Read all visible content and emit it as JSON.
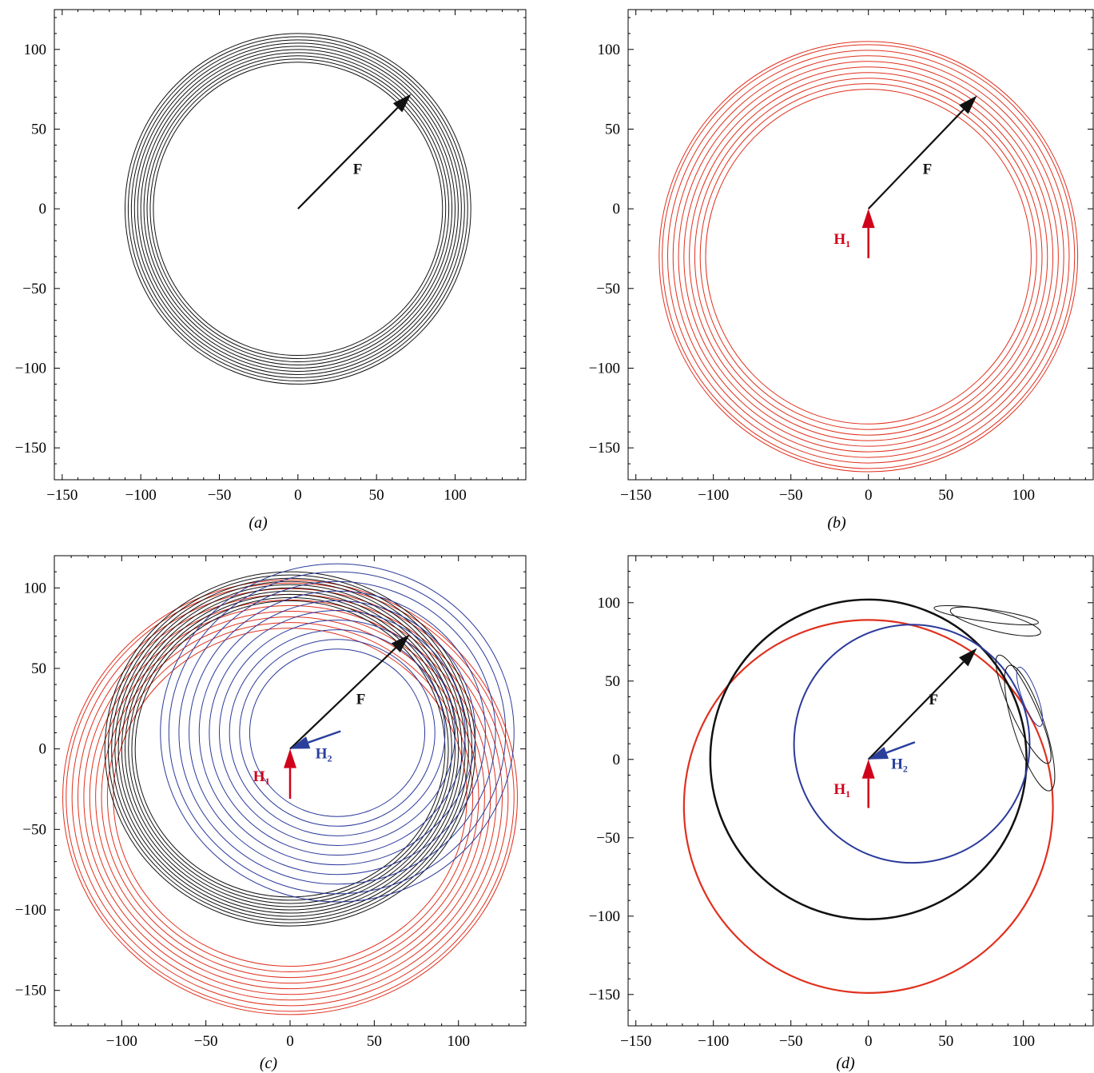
{
  "colors": {
    "black": "#111111",
    "red": "#e0301e",
    "red_arrow": "#d0021b",
    "blue": "#2b3a9a",
    "blue_arrow": "#2a3f9c"
  },
  "chart_data": [
    {
      "type": "line",
      "panel": "a",
      "caption": "(a)",
      "xlim": [
        -155,
        145
      ],
      "ylim": [
        -170,
        125
      ],
      "xticks": [
        -150,
        -100,
        -50,
        0,
        50,
        100
      ],
      "yticks": [
        -150,
        -100,
        -50,
        0,
        50,
        100
      ],
      "xtick_labels": [
        "−150",
        "−100",
        "−50",
        "0",
        "50",
        "100"
      ],
      "ytick_labels": [
        "−150",
        "−100",
        "−50",
        "0",
        "50",
        "100"
      ],
      "circle_families": [
        {
          "color_key": "black",
          "cx": 0,
          "cy": 0,
          "radii": [
            92,
            94,
            96,
            98,
            100,
            102,
            104,
            106,
            108,
            110
          ],
          "stroke": 1
        }
      ],
      "vectors": [
        {
          "label": "F",
          "sub": "",
          "color_key": "black",
          "from": [
            0,
            0
          ],
          "to": [
            72,
            72
          ],
          "label_at": [
            38,
            22
          ],
          "lw": 2.2
        }
      ]
    },
    {
      "type": "line",
      "panel": "b",
      "caption": "(b)",
      "xlim": [
        -155,
        145
      ],
      "ylim": [
        -170,
        125
      ],
      "xticks": [
        -150,
        -100,
        -50,
        0,
        50,
        100
      ],
      "yticks": [
        -150,
        -100,
        -50,
        0,
        50,
        100
      ],
      "xtick_labels": [
        "−150",
        "−100",
        "−50",
        "0",
        "50",
        "100"
      ],
      "ytick_labels": [
        "−150",
        "−100",
        "−50",
        "0",
        "50",
        "100"
      ],
      "circle_families": [
        {
          "color_key": "red",
          "cx": 0,
          "cy": -30,
          "radii": [
            105,
            108.5,
            112,
            115.5,
            119,
            122.5,
            126,
            129.5,
            133,
            135
          ],
          "stroke": 1
        }
      ],
      "vectors": [
        {
          "label": "F",
          "sub": "",
          "color_key": "black",
          "from": [
            0,
            0
          ],
          "to": [
            70,
            71
          ],
          "label_at": [
            38,
            22
          ],
          "lw": 2.2
        },
        {
          "label": "H",
          "sub": "1",
          "color_key": "red_arrow",
          "from": [
            0,
            -31
          ],
          "to": [
            0,
            0
          ],
          "label_at": [
            -17,
            -22
          ],
          "lw": 2.5
        }
      ]
    },
    {
      "type": "line",
      "panel": "c",
      "caption": "(c)",
      "xlim": [
        -140,
        140
      ],
      "ylim": [
        -172,
        120
      ],
      "xticks": [
        -100,
        -50,
        0,
        50,
        100
      ],
      "yticks": [
        -150,
        -100,
        -50,
        0,
        50,
        100
      ],
      "xtick_labels": [
        "−100",
        "−50",
        "0",
        "50",
        "100"
      ],
      "ytick_labels": [
        "−150",
        "−100",
        "−50",
        "0",
        "50",
        "100"
      ],
      "circle_families": [
        {
          "color_key": "red",
          "cx": 0,
          "cy": -30,
          "radii": [
            105,
            108.5,
            112,
            115.5,
            119,
            122.5,
            126,
            129.5,
            133,
            135
          ],
          "stroke": 1
        },
        {
          "color_key": "black",
          "cx": 0,
          "cy": 0,
          "radii": [
            92,
            94,
            96,
            98,
            100,
            102,
            104,
            106,
            108,
            110
          ],
          "stroke": 1
        },
        {
          "color_key": "blue",
          "cx": 28,
          "cy": 10,
          "radii": [
            52,
            58,
            64,
            70,
            76,
            82,
            88,
            94,
            100,
            105
          ],
          "stroke": 1
        }
      ],
      "vectors": [
        {
          "label": "F",
          "sub": "",
          "color_key": "black",
          "from": [
            0,
            0
          ],
          "to": [
            71,
            71
          ],
          "label_at": [
            42,
            28
          ],
          "lw": 2.2
        },
        {
          "label": "H",
          "sub": "1",
          "color_key": "red_arrow",
          "from": [
            0,
            -31
          ],
          "to": [
            0,
            0
          ],
          "label_at": [
            -17,
            -20
          ],
          "lw": 2.5
        },
        {
          "label": "H",
          "sub": "2",
          "color_key": "blue_arrow",
          "from": [
            30,
            11
          ],
          "to": [
            0,
            0
          ],
          "label_at": [
            20,
            -6
          ],
          "lw": 2.5
        }
      ]
    },
    {
      "type": "line",
      "panel": "d",
      "caption": "(d)",
      "xlim": [
        -155,
        145
      ],
      "ylim": [
        -170,
        130
      ],
      "xticks": [
        -150,
        -100,
        -50,
        0,
        50,
        100
      ],
      "yticks": [
        -150,
        -100,
        -50,
        0,
        50,
        100
      ],
      "xtick_labels": [
        "−150",
        "−100",
        "−50",
        "0",
        "50",
        "100"
      ],
      "ytick_labels": [
        "−150",
        "−100",
        "−50",
        "0",
        "50",
        "100"
      ],
      "circle_families": [
        {
          "color_key": "red",
          "cx": 0,
          "cy": -30,
          "radii": [
            119
          ],
          "stroke": 2.2
        },
        {
          "color_key": "black",
          "cx": 0,
          "cy": 0,
          "radii": [
            102
          ],
          "stroke": 2.5
        },
        {
          "color_key": "blue",
          "cx": 28,
          "cy": 10,
          "radii": [
            76
          ],
          "stroke": 2
        }
      ],
      "loops": [
        {
          "color_key": "black",
          "cx": 104,
          "cy": 20,
          "rx": 10,
          "ry": 42,
          "rot": -18
        },
        {
          "color_key": "black",
          "cx": 100,
          "cy": 32,
          "rx": 8,
          "ry": 38,
          "rot": -25
        },
        {
          "color_key": "black",
          "cx": 82,
          "cy": 88,
          "rx": 30,
          "ry": 6,
          "rot": 14
        },
        {
          "color_key": "black",
          "cx": 76,
          "cy": 92,
          "rx": 34,
          "ry": 4,
          "rot": 8
        },
        {
          "color_key": "blue",
          "cx": 104,
          "cy": 40,
          "rx": 5,
          "ry": 20,
          "rot": -20
        }
      ],
      "vectors": [
        {
          "label": "F",
          "sub": "",
          "color_key": "black",
          "from": [
            0,
            0
          ],
          "to": [
            70,
            71
          ],
          "label_at": [
            42,
            35
          ],
          "lw": 2.2
        },
        {
          "label": "H",
          "sub": "1",
          "color_key": "red_arrow",
          "from": [
            0,
            -31
          ],
          "to": [
            0,
            0
          ],
          "label_at": [
            -17,
            -22
          ],
          "lw": 2.5
        },
        {
          "label": "H",
          "sub": "2",
          "color_key": "blue_arrow",
          "from": [
            30,
            11
          ],
          "to": [
            0,
            0
          ],
          "label_at": [
            20,
            -6
          ],
          "lw": 2.5
        }
      ]
    }
  ]
}
